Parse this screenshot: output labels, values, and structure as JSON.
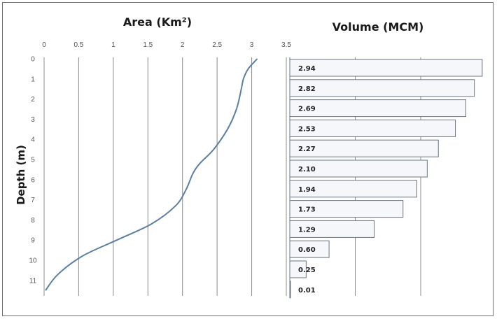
{
  "chart_data": [
    {
      "type": "line",
      "title": "Area (Km²)",
      "xlabel": "",
      "ylabel": "Depth (m)",
      "x_ticks": [
        "0",
        "0.5",
        "1",
        "1.5",
        "2",
        "2.5",
        "3",
        "3.5"
      ],
      "y_ticks": [
        "0",
        "1",
        "2",
        "3",
        "4",
        "5",
        "6",
        "7",
        "8",
        "9",
        "10",
        "11"
      ],
      "xlim": [
        0,
        3.5
      ],
      "ylim": [
        0,
        11.5
      ],
      "x_axis_position": "top",
      "y_inverted": true,
      "grid": "vertical",
      "line_color": "#5b7fa3",
      "series": [
        {
          "x": [
            3.08,
            2.95,
            2.88,
            2.85,
            2.78,
            2.65,
            2.45,
            2.25,
            2.15,
            2.05,
            1.9,
            1.55,
            1.05,
            0.55,
            0.2,
            0.02
          ],
          "y": [
            0,
            0.5,
            1.0,
            1.5,
            2.5,
            3.5,
            4.5,
            5.2,
            5.7,
            6.5,
            7.3,
            8.2,
            9.0,
            9.8,
            10.7,
            11.5
          ]
        }
      ]
    },
    {
      "type": "bar",
      "title": "Volume (MCM)",
      "orientation": "horizontal",
      "categories": [
        "0",
        "1",
        "2",
        "3",
        "4",
        "5",
        "6",
        "7",
        "8",
        "9",
        "10",
        "11"
      ],
      "values": [
        2.94,
        2.82,
        2.69,
        2.53,
        2.27,
        2.1,
        1.94,
        1.73,
        1.29,
        0.6,
        0.25,
        0.01
      ],
      "data_labels": [
        "2.94",
        "2.82",
        "2.69",
        "2.53",
        "2.27",
        "2.10",
        "1.94",
        "1.73",
        "1.29",
        "0.60",
        "0.25",
        "0.01"
      ],
      "xlim": [
        0,
        3
      ],
      "grid": "vertical",
      "bar_fill": "#f5f7fb",
      "bar_stroke": "#6c7480"
    }
  ]
}
